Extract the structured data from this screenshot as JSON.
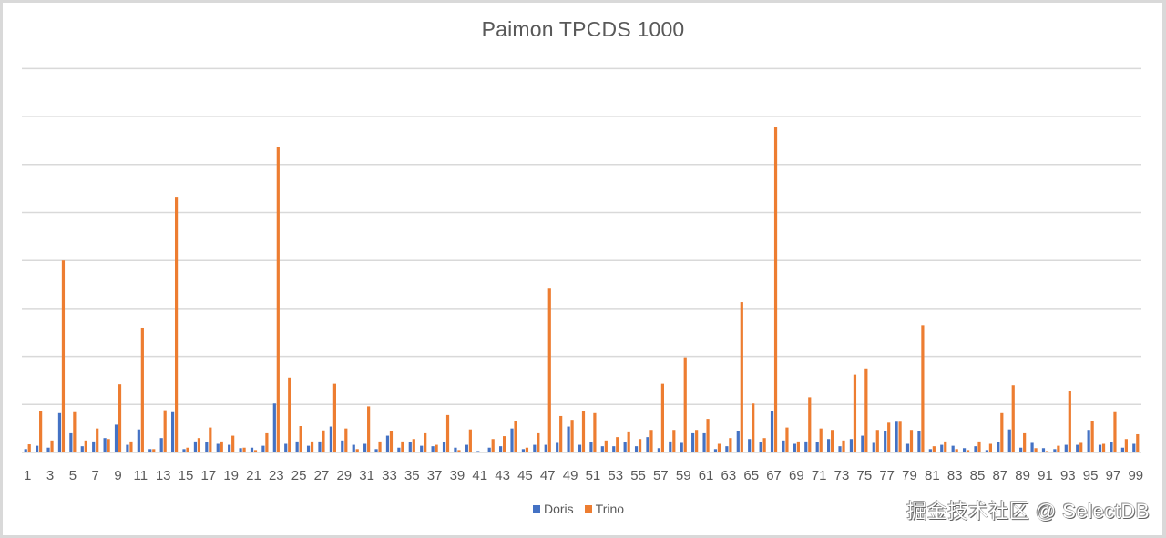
{
  "chart_data": {
    "type": "bar",
    "title": "Paimon TPCDS 1000",
    "xlabel": "",
    "ylabel": "",
    "y_unit_note": "No y-axis tick labels shown; values expressed in gridline units (8 gridlines above baseline)",
    "ylim": [
      0,
      8
    ],
    "grid": true,
    "legend_position": "bottom",
    "x_tick_labels_shown": [
      1,
      3,
      5,
      7,
      9,
      11,
      13,
      15,
      17,
      19,
      21,
      23,
      25,
      27,
      29,
      31,
      33,
      35,
      37,
      39,
      41,
      43,
      45,
      47,
      49,
      51,
      53,
      55,
      57,
      59,
      61,
      63,
      65,
      67,
      69,
      71,
      73,
      75,
      77,
      79,
      81,
      83,
      85,
      87,
      89,
      91,
      93,
      95,
      97,
      99
    ],
    "categories": [
      1,
      2,
      3,
      4,
      5,
      6,
      7,
      8,
      9,
      10,
      11,
      12,
      13,
      14,
      15,
      16,
      17,
      18,
      19,
      20,
      21,
      22,
      23,
      24,
      25,
      26,
      27,
      28,
      29,
      30,
      31,
      32,
      33,
      34,
      35,
      36,
      37,
      38,
      39,
      40,
      41,
      42,
      43,
      44,
      45,
      46,
      47,
      48,
      49,
      50,
      51,
      52,
      53,
      54,
      55,
      56,
      57,
      58,
      59,
      60,
      61,
      62,
      63,
      64,
      65,
      66,
      67,
      68,
      69,
      70,
      71,
      72,
      73,
      74,
      75,
      76,
      77,
      78,
      79,
      80,
      81,
      82,
      83,
      84,
      85,
      86,
      87,
      88,
      89,
      90,
      91,
      92,
      93,
      94,
      95,
      96,
      97,
      98,
      99
    ],
    "series": [
      {
        "name": "Doris",
        "color": "#4472c4",
        "values": [
          0.07,
          0.14,
          0.1,
          0.82,
          0.4,
          0.13,
          0.23,
          0.3,
          0.58,
          0.16,
          0.48,
          0.07,
          0.3,
          0.84,
          0.07,
          0.23,
          0.22,
          0.18,
          0.16,
          0.09,
          0.1,
          0.14,
          1.02,
          0.18,
          0.23,
          0.14,
          0.23,
          0.54,
          0.25,
          0.16,
          0.18,
          0.07,
          0.35,
          0.1,
          0.21,
          0.14,
          0.13,
          0.22,
          0.1,
          0.16,
          0.03,
          0.1,
          0.13,
          0.5,
          0.07,
          0.16,
          0.16,
          0.2,
          0.54,
          0.16,
          0.22,
          0.13,
          0.13,
          0.22,
          0.13,
          0.32,
          0.09,
          0.23,
          0.2,
          0.4,
          0.4,
          0.07,
          0.13,
          0.45,
          0.28,
          0.22,
          0.86,
          0.25,
          0.18,
          0.23,
          0.22,
          0.28,
          0.13,
          0.28,
          0.35,
          0.2,
          0.45,
          0.64,
          0.18,
          0.45,
          0.07,
          0.16,
          0.14,
          0.09,
          0.13,
          0.05,
          0.22,
          0.48,
          0.1,
          0.2,
          0.09,
          0.07,
          0.16,
          0.16,
          0.47,
          0.16,
          0.22,
          0.1,
          0.18
        ]
      },
      {
        "name": "Trino",
        "color": "#ed7d31",
        "values": [
          0.17,
          0.86,
          0.25,
          4.0,
          0.84,
          0.25,
          0.5,
          0.28,
          1.42,
          0.23,
          2.6,
          0.07,
          0.88,
          5.33,
          0.1,
          0.3,
          0.52,
          0.23,
          0.35,
          0.1,
          0.05,
          0.4,
          6.36,
          1.56,
          0.55,
          0.23,
          0.46,
          1.43,
          0.5,
          0.07,
          0.96,
          0.23,
          0.44,
          0.23,
          0.28,
          0.4,
          0.16,
          0.78,
          0.05,
          0.48,
          0.01,
          0.28,
          0.34,
          0.66,
          0.1,
          0.4,
          3.43,
          0.76,
          0.68,
          0.86,
          0.82,
          0.25,
          0.32,
          0.42,
          0.28,
          0.47,
          1.43,
          0.47,
          1.98,
          0.47,
          0.7,
          0.18,
          0.3,
          3.13,
          1.02,
          0.3,
          6.79,
          0.52,
          0.23,
          1.15,
          0.5,
          0.47,
          0.25,
          1.62,
          1.75,
          0.47,
          0.62,
          0.64,
          0.47,
          2.65,
          0.13,
          0.23,
          0.07,
          0.05,
          0.23,
          0.18,
          0.82,
          1.4,
          0.4,
          0.09,
          0.03,
          0.14,
          1.28,
          0.2,
          0.66,
          0.18,
          0.84,
          0.28,
          0.38
        ]
      }
    ]
  },
  "legend": {
    "items": [
      {
        "label": "Doris",
        "color": "#4472c4"
      },
      {
        "label": "Trino",
        "color": "#ed7d31"
      }
    ]
  },
  "watermark": "掘金技术社区 @ SelectDB"
}
